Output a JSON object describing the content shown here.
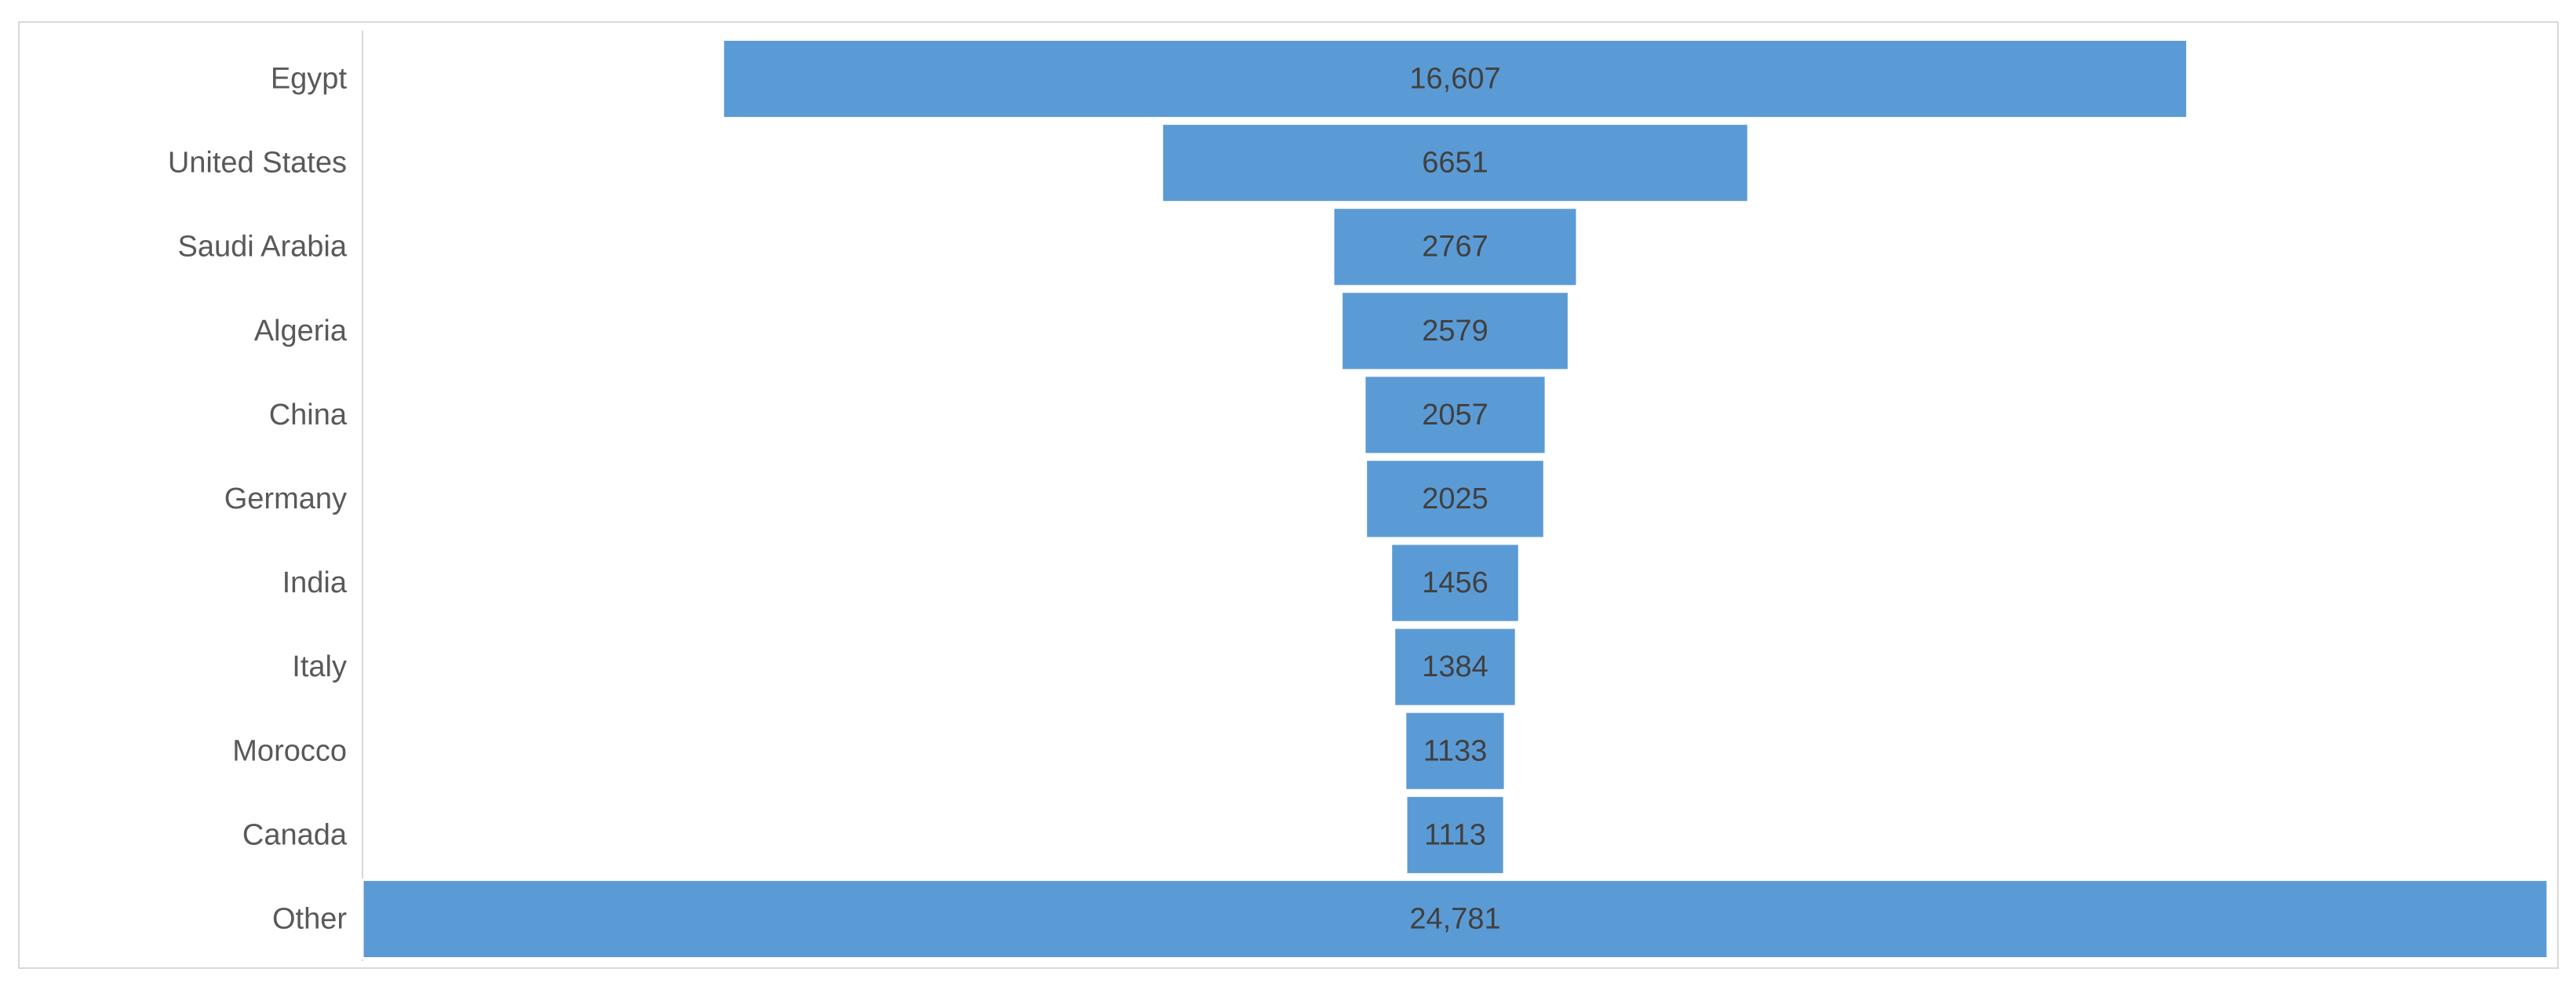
{
  "chart_data": {
    "type": "bar",
    "variant": "funnel",
    "orientation": "horizontal",
    "categories": [
      "Egypt",
      "United States",
      "Saudi Arabia",
      "Algeria",
      "China",
      "Germany",
      "India",
      "Italy",
      "Morocco",
      "Canada",
      "Other"
    ],
    "values": [
      16607,
      6651,
      2767,
      2579,
      2057,
      2025,
      1456,
      1384,
      1133,
      1113,
      24781
    ],
    "value_labels": [
      "16,607",
      "6651",
      "2767",
      "2579",
      "2057",
      "2025",
      "1456",
      "1384",
      "1133",
      "1113",
      "24,781"
    ],
    "title": "",
    "xlabel": "",
    "ylabel": "",
    "grid": false,
    "legend": "none",
    "colors": {
      "bar": "#5b9bd5",
      "bar_outline": "#ffffff",
      "category_text": "#595959",
      "value_text": "#404040",
      "frame": "#d9d9d9",
      "axis_line": "#d9d9d9"
    }
  }
}
